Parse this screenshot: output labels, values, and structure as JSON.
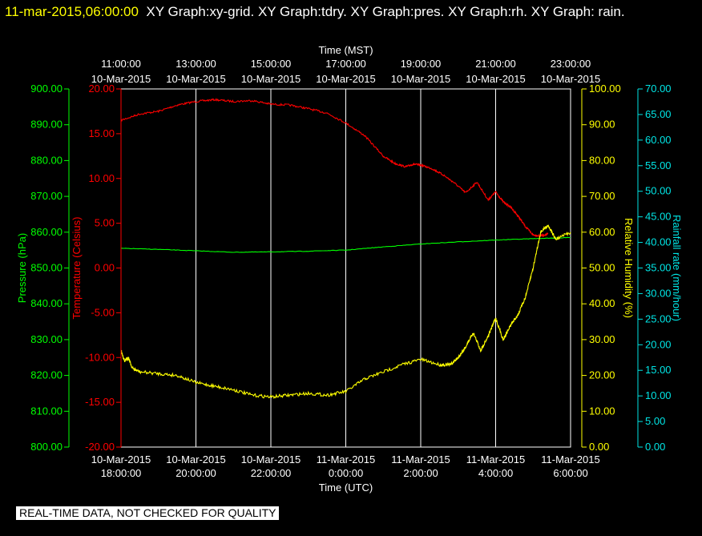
{
  "header": {
    "timestamp": "11-mar-2015,06:00:00",
    "titles": "XY Graph:xy-grid.  XY Graph:tdry.  XY Graph:pres.  XY Graph:rh.  XY Graph: rain."
  },
  "footer_note": "REAL-TIME DATA, NOT CHECKED FOR QUALITY",
  "colors": {
    "background": "#000000",
    "grid": "#ffffff",
    "temperature": "#ff0000",
    "pressure": "#00ff00",
    "humidity": "#ffff00",
    "rain": "#00e5e5",
    "header_timestamp": "#ffff00"
  },
  "chart_data": {
    "type": "line",
    "x_top": {
      "label": "Time (MST)",
      "ticks": [
        {
          "time": "11:00:00",
          "date": "10-Mar-2015"
        },
        {
          "time": "13:00:00",
          "date": "10-Mar-2015"
        },
        {
          "time": "15:00:00",
          "date": "10-Mar-2015"
        },
        {
          "time": "17:00:00",
          "date": "10-Mar-2015"
        },
        {
          "time": "19:00:00",
          "date": "10-Mar-2015"
        },
        {
          "time": "21:00:00",
          "date": "10-Mar-2015"
        },
        {
          "time": "23:00:00",
          "date": "10-Mar-2015"
        }
      ]
    },
    "x_bottom": {
      "label": "Time (UTC)",
      "ticks": [
        {
          "date": "10-Mar-2015",
          "time": "18:00:00"
        },
        {
          "date": "10-Mar-2015",
          "time": "20:00:00"
        },
        {
          "date": "10-Mar-2015",
          "time": "22:00:00"
        },
        {
          "date": "11-Mar-2015",
          "time": "0:00:00"
        },
        {
          "date": "11-Mar-2015",
          "time": "2:00:00"
        },
        {
          "date": "11-Mar-2015",
          "time": "4:00:00"
        },
        {
          "date": "11-Mar-2015",
          "time": "6:00:00"
        }
      ],
      "range_hours": [
        0,
        12
      ]
    },
    "axes": {
      "pressure": {
        "label": "Pressure (hPa)",
        "range": [
          800,
          900
        ],
        "ticks": [
          "800.00",
          "810.00",
          "820.00",
          "830.00",
          "840.00",
          "850.00",
          "860.00",
          "870.00",
          "880.00",
          "890.00",
          "900.00"
        ]
      },
      "temperature": {
        "label": "Temperature (Celsius)",
        "range": [
          -20,
          20
        ],
        "ticks": [
          "-20.00",
          "-15.00",
          "-10.00",
          "-5.00",
          "0.00",
          "5.00",
          "10.00",
          "15.00",
          "20.00"
        ]
      },
      "humidity": {
        "label": "Relative Humidity (%)",
        "range": [
          0,
          100
        ],
        "ticks": [
          "0.00",
          "10.00",
          "20.00",
          "30.00",
          "40.00",
          "50.00",
          "60.00",
          "70.00",
          "80.00",
          "90.00",
          "100.00"
        ]
      },
      "rain": {
        "label": "Rainfall rate (mm/hour)",
        "range": [
          0,
          70
        ],
        "ticks": [
          "0.00",
          "5.00",
          "10.00",
          "15.00",
          "20.00",
          "25.00",
          "30.00",
          "35.00",
          "40.00",
          "45.00",
          "50.00",
          "55.00",
          "60.00",
          "65.00",
          "70.00"
        ]
      }
    },
    "series": [
      {
        "axis": "temperature",
        "x": [
          0,
          0.5,
          1,
          1.5,
          2,
          2.5,
          3,
          3.5,
          4,
          4.5,
          5,
          5.5,
          6,
          6.5,
          7,
          7.3,
          7.6,
          7.8,
          8,
          8.3,
          8.6,
          8.9,
          9.2,
          9.5,
          9.8,
          10,
          10.2,
          10.4,
          10.6,
          10.8,
          11,
          11.2,
          11.4
        ],
        "y": [
          16.5,
          17.2,
          17.5,
          18.2,
          18.6,
          18.8,
          18.6,
          18.7,
          18.3,
          18.2,
          17.8,
          17.3,
          16.2,
          14.8,
          12.5,
          11.7,
          11.3,
          11.6,
          11.5,
          11.1,
          10.4,
          9.5,
          8.4,
          9.6,
          7.6,
          8.5,
          7.4,
          6.8,
          5.8,
          4.6,
          3.7,
          3.6,
          3.8
        ]
      },
      {
        "axis": "pressure",
        "x": [
          0,
          1,
          2,
          3,
          4,
          5,
          6,
          7,
          8,
          9,
          10,
          11,
          12
        ],
        "y": [
          855.5,
          855.2,
          854.8,
          854.4,
          854.5,
          854.7,
          855.0,
          855.9,
          856.7,
          857.3,
          857.8,
          858.2,
          858.5
        ]
      },
      {
        "axis": "humidity",
        "x": [
          0,
          0.1,
          0.2,
          0.3,
          0.5,
          1,
          1.5,
          2,
          2.5,
          3,
          3.5,
          4,
          4.5,
          5,
          5.5,
          6,
          6.5,
          7,
          7.5,
          8,
          8.5,
          8.8,
          9,
          9.2,
          9.4,
          9.6,
          9.8,
          10,
          10.2,
          10.4,
          10.6,
          10.8,
          11,
          11.2,
          11.4,
          11.6,
          12
        ],
        "y": [
          27,
          24,
          25,
          22,
          21,
          20.5,
          20,
          18,
          17,
          16,
          14.5,
          14,
          14.5,
          15,
          14.5,
          15.5,
          19,
          21,
          23,
          24.5,
          23,
          23,
          25,
          28,
          32,
          27,
          31,
          36,
          30,
          34,
          37,
          42,
          50,
          60,
          62,
          58,
          60
        ]
      }
    ]
  }
}
